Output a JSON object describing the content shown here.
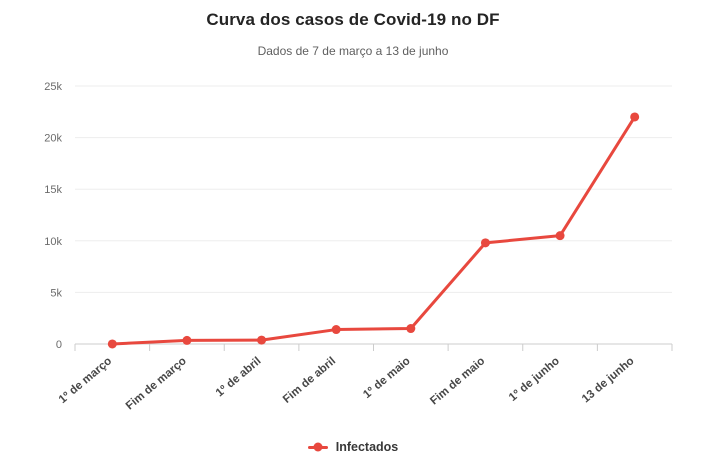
{
  "header": {
    "title": "Curva dos casos de Covid-19 no DF",
    "subtitle": "Dados de 7 de março a 13 de junho"
  },
  "legend": {
    "label": "Infectados"
  },
  "colors": {
    "series_red": "#e8483e",
    "grid_line": "#ededed",
    "axis_line": "#cccccc",
    "y_label": "#6b6b6b",
    "x_label": "#474747",
    "title": "#242424",
    "subtitle": "#5f5f5f"
  },
  "chart_data": {
    "type": "line",
    "title": "Curva dos casos de Covid-19 no DF",
    "subtitle": "Dados de 7 de março a 13 de junho",
    "categories": [
      "1º de março",
      "Fim de março",
      "1º de abril",
      "Fim de abril",
      "1º de maio",
      "Fim de maio",
      "1º de junho",
      "13 de junho"
    ],
    "series": [
      {
        "name": "Infectados",
        "color": "#e8483e",
        "values": [
          1,
          350,
          380,
          1400,
          1500,
          9800,
          10500,
          22000
        ]
      }
    ],
    "xlabel": "",
    "ylabel": "",
    "ylim": [
      0,
      25000
    ],
    "y_ticks": [
      {
        "value": 0,
        "label": "0"
      },
      {
        "value": 5000,
        "label": "5k"
      },
      {
        "value": 10000,
        "label": "10k"
      },
      {
        "value": 15000,
        "label": "15k"
      },
      {
        "value": 20000,
        "label": "20k"
      },
      {
        "value": 25000,
        "label": "25k"
      }
    ],
    "grid": true,
    "legend_position": "bottom"
  }
}
